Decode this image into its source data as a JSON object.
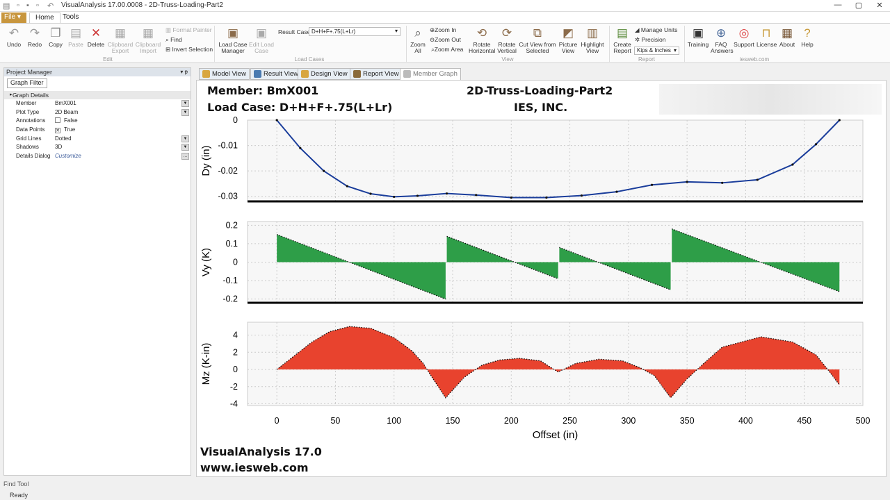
{
  "window": {
    "title": "VisualAnalysis 17.00.0008 - 2D-Truss-Loading-Part2",
    "minimize": "—",
    "restore": "▢",
    "close": "✕"
  },
  "tabs": {
    "file": "File ▾",
    "home": "Home",
    "tools": "Tools"
  },
  "ribbon": {
    "edit": {
      "undo": "Undo",
      "redo": "Redo",
      "copy": "Copy",
      "paste": "Paste",
      "delete": "Delete",
      "clipboard_export": "Clipboard Export",
      "clipboard_import": "Clipboard Import",
      "format_painter": "Format Painter",
      "find": "Find",
      "invert_selection": "Invert Selection",
      "group": "Edit"
    },
    "loadcases": {
      "load_case_manager": "Load Case Manager",
      "edit_load_case": "Edit Load Case",
      "result_case_label": "Result Case",
      "result_case_value": "D+H+F+.75(L+Lr)",
      "group": "Load Cases"
    },
    "view": {
      "zoom_all": "Zoom All",
      "zoom_in": "Zoom In",
      "zoom_out": "Zoom Out",
      "zoom_area": "Zoom Area",
      "rotate_horizontal": "Rotate Horizontal",
      "rotate_vertical": "Rotate Vertical",
      "cut_view": "Cut View from Selected",
      "picture_view": "Picture View",
      "highlight_view": "Highlight View",
      "group": "View"
    },
    "report": {
      "create_report": "Create Report",
      "manage_units": "Manage Units",
      "precision": "Precision",
      "units_value": "Kips & Inches",
      "group": "Report"
    },
    "iesweb": {
      "training": "Training",
      "faq": "FAQ Answers",
      "support": "Support",
      "license": "License",
      "about": "About",
      "help": "Help",
      "group": "iesweb.com"
    }
  },
  "project_manager": {
    "title": "Project Manager",
    "pin": "▾ ᵽ",
    "filter_tab": "Graph Filter",
    "section": "Graph Details",
    "props": [
      {
        "key": "Member",
        "value": "BmX001"
      },
      {
        "key": "Plot Type",
        "value": "2D Beam"
      },
      {
        "key": "Annotations",
        "value": "False"
      },
      {
        "key": "Data Points",
        "value": "True"
      },
      {
        "key": "Grid Lines",
        "value": "Dotted"
      },
      {
        "key": "Shadows",
        "value": "3D"
      },
      {
        "key": "Details Dialog",
        "value": "Customize"
      }
    ]
  },
  "view_tabs": {
    "model": "Model View",
    "result": "Result View",
    "design": "Design View",
    "report": "Report View",
    "member_graph": "Member Graph"
  },
  "graph": {
    "member_line": "Member: BmX001",
    "loadcase_line": "Load Case: D+H+F+.75(L+Lr)",
    "project_line": "2D-Truss-Loading-Part2",
    "company_line": "IES, INC.",
    "footer1": "VisualAnalysis 17.0",
    "footer2": "www.iesweb.com"
  },
  "chart_data": [
    {
      "type": "line",
      "ylabel": "Dy (in)",
      "xlim": [
        -25,
        500
      ],
      "ylim": [
        -0.032,
        0
      ],
      "yticks": [
        "0",
        "-0.01",
        "-0.02",
        "-0.03"
      ],
      "yticks_values": [
        0,
        -0.01,
        -0.02,
        -0.03
      ],
      "grid": "dotted",
      "color": "#1a3d9b",
      "x": [
        0,
        20,
        40,
        60,
        80,
        100,
        120,
        145,
        170,
        200,
        230,
        260,
        290,
        320,
        350,
        380,
        410,
        440,
        460,
        480
      ],
      "y": [
        0,
        -0.011,
        -0.02,
        -0.026,
        -0.029,
        -0.0302,
        -0.0298,
        -0.0289,
        -0.0295,
        -0.0305,
        -0.0305,
        -0.0297,
        -0.0282,
        -0.0255,
        -0.0243,
        -0.0247,
        -0.0235,
        -0.0175,
        -0.0095,
        0
      ]
    },
    {
      "type": "area",
      "ylabel": "Vy (K)",
      "xlim": [
        -25,
        500
      ],
      "ylim": [
        -0.22,
        0.22
      ],
      "yticks": [
        "0.2",
        "0.1",
        "0",
        "-0.1",
        "-0.2"
      ],
      "yticks_values": [
        0.2,
        0.1,
        0,
        -0.1,
        -0.2
      ],
      "grid": "dotted",
      "color": "#2e9e48",
      "segments": [
        [
          [
            0,
            0.15
          ],
          [
            144,
            -0.2
          ]
        ],
        [
          [
            145,
            0.14
          ],
          [
            240,
            -0.09
          ]
        ],
        [
          [
            241,
            0.08
          ],
          [
            336,
            -0.15
          ]
        ],
        [
          [
            337,
            0.18
          ],
          [
            480,
            -0.16
          ]
        ]
      ]
    },
    {
      "type": "area",
      "ylabel": "Mz (K-in)",
      "xlabel": "Offset (in)",
      "xlim": [
        -25,
        500
      ],
      "ylim": [
        -4.2,
        5.5
      ],
      "yticks": [
        "4",
        "2",
        "0",
        "-2",
        "-4"
      ],
      "yticks_values": [
        4,
        2,
        0,
        -2,
        -4
      ],
      "xticks": [
        "0",
        "50",
        "100",
        "150",
        "200",
        "250",
        "300",
        "350",
        "400",
        "450",
        "500"
      ],
      "xticks_values": [
        0,
        50,
        100,
        150,
        200,
        250,
        300,
        350,
        400,
        450,
        500
      ],
      "grid": "dotted",
      "color": "#e8432e",
      "x": [
        0,
        15,
        30,
        45,
        62,
        80,
        100,
        115,
        125,
        130,
        144,
        160,
        175,
        190,
        207,
        225,
        240,
        255,
        275,
        295,
        310,
        322,
        336,
        350,
        365,
        380,
        413,
        440,
        460,
        470,
        480
      ],
      "y": [
        0,
        1.6,
        3.2,
        4.4,
        5.0,
        4.8,
        3.7,
        2.2,
        0.7,
        -0.4,
        -3.3,
        -0.9,
        0.5,
        1.1,
        1.3,
        1.0,
        -0.3,
        0.7,
        1.2,
        1.0,
        0.2,
        -0.7,
        -3.3,
        -1.1,
        0.8,
        2.6,
        3.8,
        3.2,
        1.7,
        0,
        -1.8
      ]
    }
  ]
}
